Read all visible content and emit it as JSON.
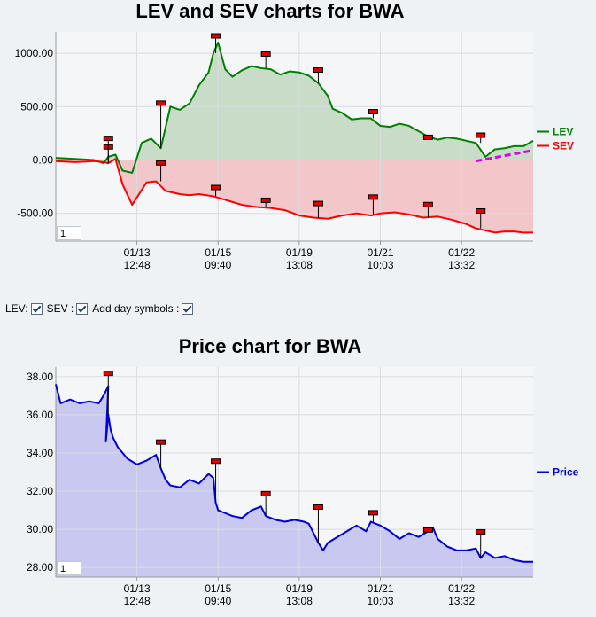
{
  "chart_data": [
    {
      "type": "area",
      "title": "LEV and SEV charts for BWA",
      "ylim": [
        -760,
        1200
      ],
      "y_ticks": [
        "1000.00",
        "500.00",
        "0.00",
        "-500.00"
      ],
      "y_tick_values": [
        1000,
        500,
        0,
        -500
      ],
      "x_tick_labels": [
        [
          "01/13",
          "12:48"
        ],
        [
          "01/15",
          "09:40"
        ],
        [
          "01/19",
          "13:08"
        ],
        [
          "01/21",
          "10:03"
        ],
        [
          "01/22",
          "13:32"
        ]
      ],
      "x_tick_positions": [
        0.17,
        0.34,
        0.51,
        0.68,
        0.85
      ],
      "grid": true,
      "legend_placement": "right",
      "zoom_value": "1",
      "series": [
        {
          "name": "LEV",
          "color": "#008000",
          "fill": "#c8dcc8",
          "x": [
            0,
            0.04,
            0.08,
            0.1,
            0.11,
            0.125,
            0.14,
            0.16,
            0.18,
            0.2,
            0.22,
            0.24,
            0.26,
            0.28,
            0.3,
            0.32,
            0.33,
            0.34,
            0.355,
            0.37,
            0.39,
            0.41,
            0.43,
            0.45,
            0.47,
            0.49,
            0.51,
            0.53,
            0.55,
            0.57,
            0.58,
            0.6,
            0.62,
            0.64,
            0.66,
            0.68,
            0.7,
            0.72,
            0.74,
            0.76,
            0.78,
            0.8,
            0.82,
            0.84,
            0.86,
            0.88,
            0.9,
            0.92,
            0.94,
            0.96,
            0.98,
            1.0
          ],
          "y": [
            20,
            10,
            0,
            -30,
            30,
            50,
            -100,
            -120,
            160,
            200,
            110,
            500,
            470,
            530,
            700,
            820,
            1000,
            1100,
            850,
            780,
            840,
            880,
            860,
            850,
            800,
            830,
            820,
            790,
            720,
            600,
            480,
            440,
            380,
            390,
            390,
            320,
            310,
            340,
            320,
            270,
            220,
            190,
            210,
            200,
            180,
            160,
            30,
            100,
            110,
            130,
            130,
            180
          ]
        },
        {
          "name": "SEV",
          "color": "#ff0000",
          "fill": "#f3c6ca",
          "x": [
            0,
            0.04,
            0.08,
            0.1,
            0.11,
            0.125,
            0.14,
            0.16,
            0.17,
            0.19,
            0.21,
            0.23,
            0.26,
            0.28,
            0.3,
            0.33,
            0.36,
            0.39,
            0.42,
            0.45,
            0.48,
            0.51,
            0.54,
            0.57,
            0.6,
            0.63,
            0.66,
            0.68,
            0.71,
            0.74,
            0.77,
            0.8,
            0.83,
            0.86,
            0.88,
            0.9,
            0.92,
            0.94,
            0.96,
            0.98,
            1.0
          ],
          "y": [
            -10,
            -20,
            -10,
            -20,
            -30,
            10,
            -230,
            -420,
            -350,
            -210,
            -200,
            -290,
            -320,
            -330,
            -320,
            -340,
            -380,
            -420,
            -440,
            -450,
            -470,
            -520,
            -540,
            -550,
            -520,
            -500,
            -520,
            -500,
            -490,
            -510,
            -540,
            -530,
            -560,
            -600,
            -640,
            -660,
            -680,
            -670,
            -670,
            -680,
            -680
          ]
        }
      ],
      "trend_line": {
        "color": "#e000e0",
        "x": [
          0.88,
          1.0
        ],
        "y": [
          -10,
          90
        ]
      },
      "markers": [
        {
          "series": "SEV",
          "x": 0.11,
          "y": 110
        },
        {
          "series": "SEV",
          "x": 0.11,
          "y": 190
        },
        {
          "series": "LEV",
          "x": 0.22,
          "y": 520
        },
        {
          "series": "SEV",
          "x": 0.22,
          "y": -40
        },
        {
          "series": "LEV",
          "x": 0.335,
          "y": 1150
        },
        {
          "series": "SEV",
          "x": 0.335,
          "y": -270
        },
        {
          "series": "LEV",
          "x": 0.44,
          "y": 980
        },
        {
          "series": "SEV",
          "x": 0.44,
          "y": -390
        },
        {
          "series": "LEV",
          "x": 0.55,
          "y": 830
        },
        {
          "series": "SEV",
          "x": 0.55,
          "y": -420
        },
        {
          "series": "LEV",
          "x": 0.665,
          "y": 440
        },
        {
          "series": "SEV",
          "x": 0.665,
          "y": -360
        },
        {
          "series": "LEV",
          "x": 0.78,
          "y": 200
        },
        {
          "series": "SEV",
          "x": 0.78,
          "y": -430
        },
        {
          "series": "LEV",
          "x": 0.89,
          "y": 220
        },
        {
          "series": "SEV",
          "x": 0.89,
          "y": -490
        }
      ]
    },
    {
      "type": "area",
      "title": "Price chart for BWA",
      "ylim": [
        27.5,
        38.5
      ],
      "y_ticks": [
        "38.00",
        "36.00",
        "34.00",
        "32.00",
        "30.00",
        "28.00"
      ],
      "y_tick_values": [
        38,
        36,
        34,
        32,
        30,
        28
      ],
      "x_tick_labels": [
        [
          "01/13",
          "12:48"
        ],
        [
          "01/15",
          "09:40"
        ],
        [
          "01/19",
          "13:08"
        ],
        [
          "01/21",
          "10:03"
        ],
        [
          "01/22",
          "13:32"
        ]
      ],
      "x_tick_positions": [
        0.17,
        0.34,
        0.51,
        0.68,
        0.85
      ],
      "grid": true,
      "legend_placement": "right",
      "zoom_value": "1",
      "series": [
        {
          "name": "Price",
          "color": "#0000dd",
          "fill": "#c8c8f0",
          "x": [
            0,
            0.01,
            0.03,
            0.05,
            0.07,
            0.09,
            0.1,
            0.11,
            0.105,
            0.11,
            0.115,
            0.12,
            0.13,
            0.15,
            0.17,
            0.19,
            0.21,
            0.22,
            0.23,
            0.24,
            0.26,
            0.28,
            0.3,
            0.32,
            0.33,
            0.335,
            0.34,
            0.35,
            0.37,
            0.39,
            0.41,
            0.43,
            0.44,
            0.46,
            0.48,
            0.5,
            0.52,
            0.53,
            0.55,
            0.56,
            0.57,
            0.59,
            0.61,
            0.63,
            0.65,
            0.66,
            0.68,
            0.7,
            0.72,
            0.74,
            0.76,
            0.78,
            0.79,
            0.8,
            0.82,
            0.84,
            0.86,
            0.88,
            0.89,
            0.9,
            0.92,
            0.94,
            0.96,
            0.98,
            1.0
          ],
          "y": [
            37.6,
            36.6,
            36.8,
            36.6,
            36.7,
            36.6,
            37.0,
            37.5,
            34.6,
            36.0,
            35.2,
            34.8,
            34.3,
            33.7,
            33.4,
            33.6,
            33.9,
            33.2,
            32.6,
            32.3,
            32.2,
            32.6,
            32.4,
            32.9,
            32.7,
            31.4,
            31.0,
            30.9,
            30.7,
            30.6,
            31.0,
            31.2,
            30.7,
            30.5,
            30.4,
            30.5,
            30.4,
            30.3,
            29.3,
            28.9,
            29.3,
            29.6,
            29.9,
            30.2,
            29.9,
            30.4,
            30.2,
            29.9,
            29.5,
            29.8,
            29.6,
            29.9,
            30.1,
            29.5,
            29.1,
            28.9,
            28.9,
            29.0,
            28.5,
            28.8,
            28.5,
            28.6,
            28.4,
            28.3,
            28.3
          ]
        }
      ],
      "markers": [
        {
          "series": "Price",
          "x": 0.11,
          "y": 38.1
        },
        {
          "series": "Price",
          "x": 0.22,
          "y": 34.5
        },
        {
          "series": "Price",
          "x": 0.335,
          "y": 33.5
        },
        {
          "series": "Price",
          "x": 0.44,
          "y": 31.8
        },
        {
          "series": "Price",
          "x": 0.55,
          "y": 31.1
        },
        {
          "series": "Price",
          "x": 0.665,
          "y": 30.8
        },
        {
          "series": "Price",
          "x": 0.78,
          "y": 29.9
        },
        {
          "series": "Price",
          "x": 0.89,
          "y": 29.8
        }
      ]
    }
  ],
  "controls": {
    "lev_label": "LEV:",
    "sev_label": "SEV :",
    "day_symbols_label": "Add day symbols :",
    "lev_checked": true,
    "sev_checked": true,
    "day_symbols_checked": true
  }
}
